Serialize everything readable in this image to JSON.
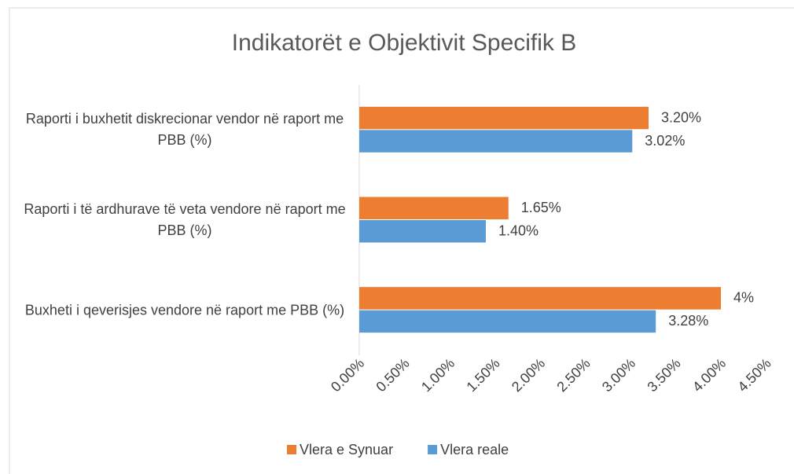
{
  "chart_data": {
    "type": "hbar",
    "title": "Indikatorët e Objektivit Specifik B",
    "categories": [
      "Raporti i buxhetit diskrecionar vendor në raport me PBB (%)",
      "Raporti i të ardhurave të veta vendore në raport me PBB (%)",
      "Buxheti i qeverisjes vendore në raport me PBB (%)"
    ],
    "series": [
      {
        "name": "Vlera e Synuar",
        "color": "#ed7d31",
        "values": [
          3.2,
          1.65,
          4
        ],
        "value_labels": [
          "3.20%",
          "1.65%",
          "4%"
        ]
      },
      {
        "name": "Vlera reale",
        "color": "#5b9bd5",
        "values": [
          3.02,
          1.4,
          3.28
        ],
        "value_labels": [
          "3.02%",
          "1.40%",
          "3.28%"
        ]
      }
    ],
    "xlim": [
      0,
      4.5
    ],
    "xticks": [
      {
        "value": 0,
        "label": "0.00%"
      },
      {
        "value": 0.5,
        "label": "0.50%"
      },
      {
        "value": 1,
        "label": "1.00%"
      },
      {
        "value": 1.5,
        "label": "1.50%"
      },
      {
        "value": 2,
        "label": "2.00%"
      },
      {
        "value": 2.5,
        "label": "2.50%"
      },
      {
        "value": 3,
        "label": "3.00%"
      },
      {
        "value": 3.5,
        "label": "3.50%"
      },
      {
        "value": 4,
        "label": "4.00%"
      },
      {
        "value": 4.5,
        "label": "4.50%"
      }
    ],
    "grid": false,
    "legend": "bottom"
  }
}
